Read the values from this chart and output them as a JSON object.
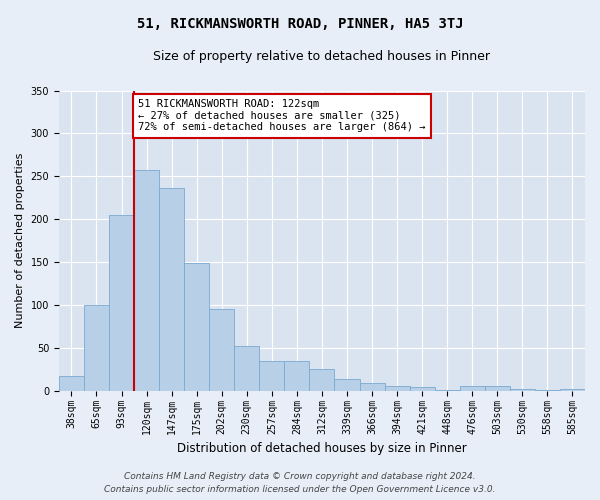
{
  "title": "51, RICKMANSWORTH ROAD, PINNER, HA5 3TJ",
  "subtitle": "Size of property relative to detached houses in Pinner",
  "xlabel": "Distribution of detached houses by size in Pinner",
  "ylabel": "Number of detached properties",
  "categories": [
    "38sqm",
    "65sqm",
    "93sqm",
    "120sqm",
    "147sqm",
    "175sqm",
    "202sqm",
    "230sqm",
    "257sqm",
    "284sqm",
    "312sqm",
    "339sqm",
    "366sqm",
    "394sqm",
    "421sqm",
    "448sqm",
    "476sqm",
    "503sqm",
    "530sqm",
    "558sqm",
    "585sqm"
  ],
  "bar_heights": [
    17,
    100,
    205,
    257,
    236,
    149,
    95,
    52,
    35,
    35,
    25,
    14,
    9,
    6,
    4,
    1,
    5,
    5,
    2,
    1,
    2
  ],
  "bar_color": "#b8cfe8",
  "bar_edge_color": "#7aaad0",
  "vline_color": "#cc0000",
  "annotation_text": "51 RICKMANSWORTH ROAD: 122sqm\n← 27% of detached houses are smaller (325)\n72% of semi-detached houses are larger (864) →",
  "annotation_box_color": "white",
  "annotation_box_edge": "#cc0000",
  "ylim": [
    0,
    350
  ],
  "yticks": [
    0,
    50,
    100,
    150,
    200,
    250,
    300,
    350
  ],
  "background_color": "#e8eef8",
  "plot_bg_color": "#dae4f0",
  "grid_color": "white",
  "footer_line1": "Contains HM Land Registry data © Crown copyright and database right 2024.",
  "footer_line2": "Contains public sector information licensed under the Open Government Licence v3.0.",
  "title_fontsize": 10,
  "subtitle_fontsize": 9,
  "xlabel_fontsize": 8.5,
  "ylabel_fontsize": 8,
  "tick_fontsize": 7,
  "annotation_fontsize": 7.5,
  "footer_fontsize": 6.5,
  "vline_x": 2.5
}
